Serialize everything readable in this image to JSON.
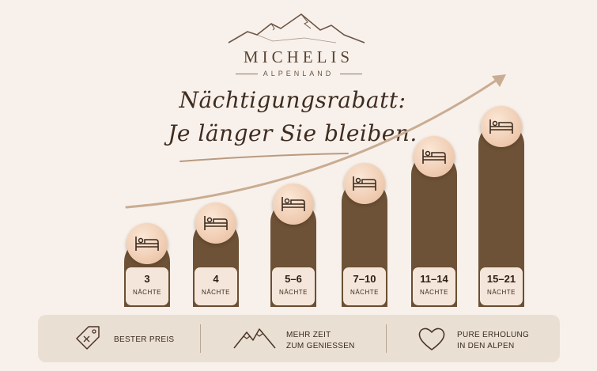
{
  "brand": {
    "name": "MICHELIS",
    "sub": "ALPENLAND"
  },
  "headline": {
    "line1": "Nächtigungsrabatt:",
    "line2": "Je länger Sie bleiben."
  },
  "tiers": [
    {
      "nights": "3",
      "unit": "NÄCHTE"
    },
    {
      "nights": "4",
      "unit": "NÄCHTE"
    },
    {
      "nights": "5–6",
      "unit": "NÄCHTE"
    },
    {
      "nights": "7–10",
      "unit": "NÄCHTE"
    },
    {
      "nights": "11–14",
      "unit": "NÄCHTE"
    },
    {
      "nights": "15–21",
      "unit": "NÄCHTE"
    }
  ],
  "features": [
    {
      "icon": "price-tag-icon",
      "line1": "BESTER PREIS",
      "line2": ""
    },
    {
      "icon": "mountains-icon",
      "line1": "MEHR ZEIT",
      "line2": "ZUM GENIESSEN"
    },
    {
      "icon": "heart-icon",
      "line1": "PURE ERHOLUNG",
      "line2": "IN DEN ALPEN"
    }
  ],
  "colors": {
    "background": "#f8f1eb",
    "bar": "#6e5237",
    "bubble": "#f0cdb3",
    "text": "#3f2c20",
    "strip": "#eadfd3"
  },
  "icons": {
    "logo": "mountain-logo-icon",
    "bed": "bed-icon",
    "arrow": "growth-arrow"
  }
}
